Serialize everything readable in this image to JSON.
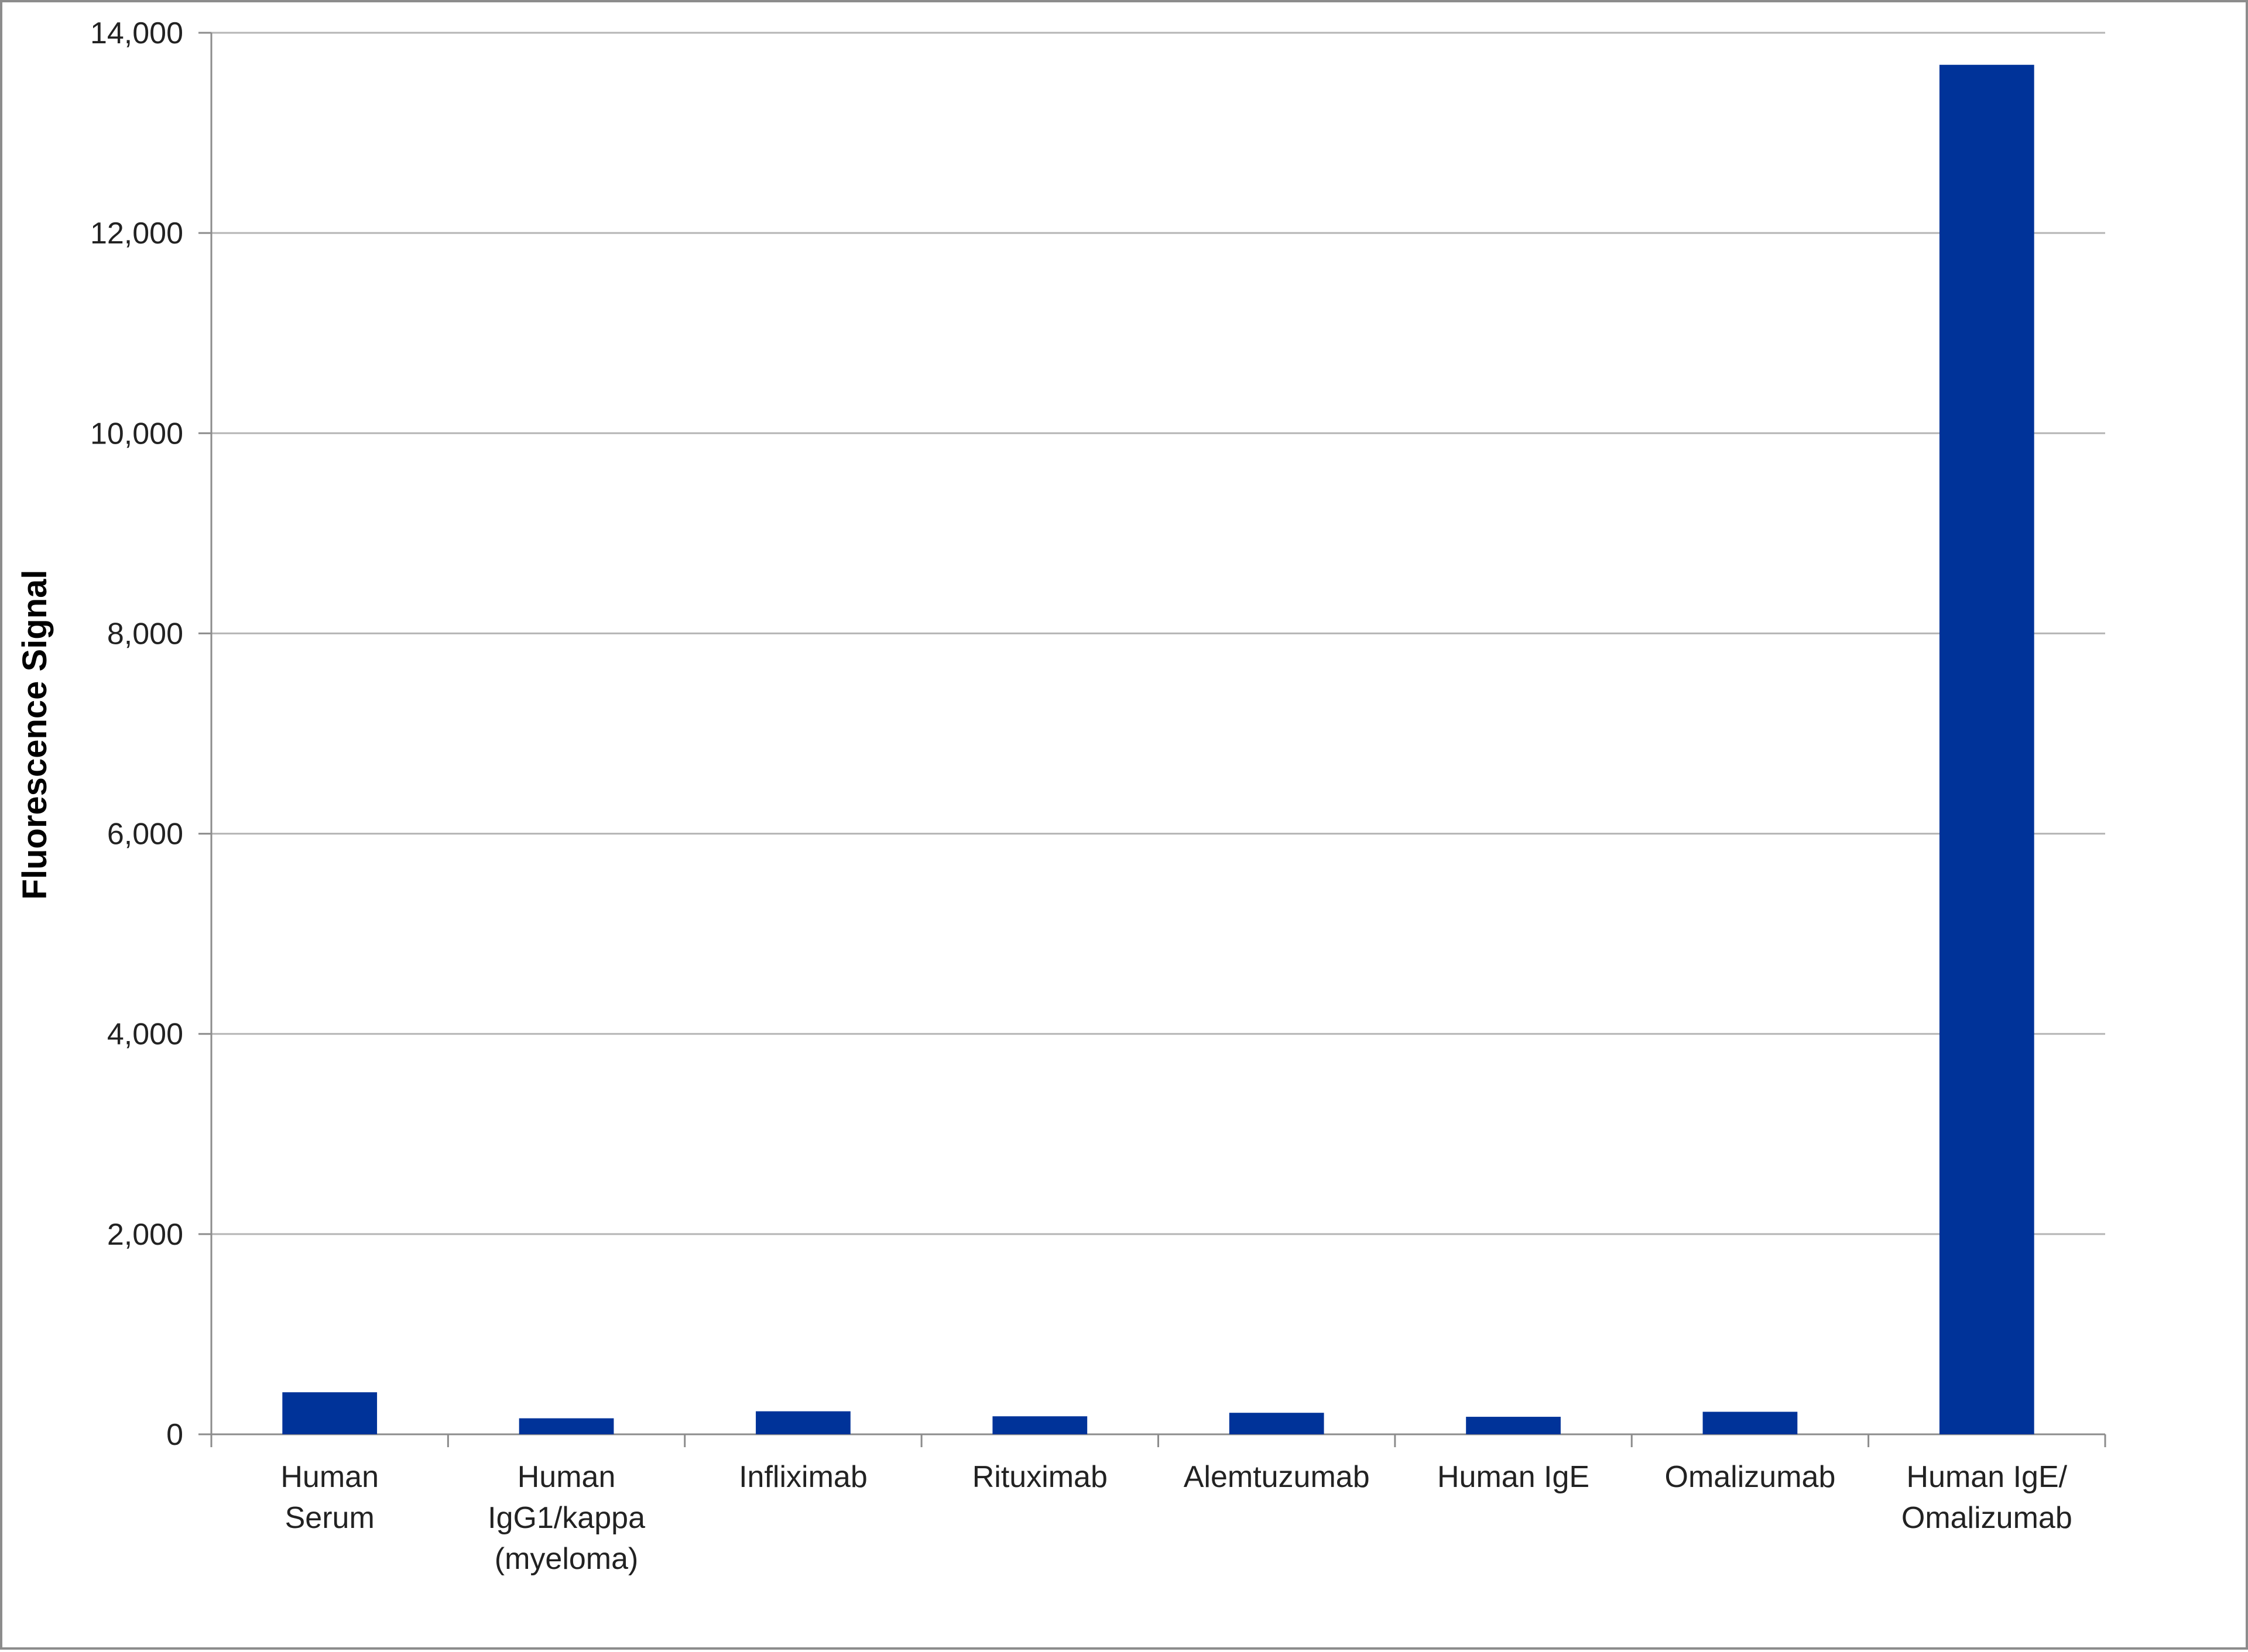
{
  "chart_data": {
    "type": "bar",
    "title": "",
    "xlabel": "",
    "ylabel": "Fluorescence Signal",
    "ylim": [
      0,
      14000
    ],
    "yticks": [
      0,
      2000,
      4000,
      6000,
      8000,
      10000,
      12000,
      14000
    ],
    "ytick_labels": [
      "0",
      "2,000",
      "4,000",
      "6,000",
      "8,000",
      "10,000",
      "12,000",
      "14,000"
    ],
    "grid": "horizontal",
    "legend": "none",
    "bar_color": "#003399",
    "categories": [
      [
        "Human",
        "Serum"
      ],
      [
        "Human",
        "IgG1/kappa",
        "(myeloma)"
      ],
      [
        "Infliximab"
      ],
      [
        "Rituximab"
      ],
      [
        "Alemtuzumab"
      ],
      [
        "Human IgE"
      ],
      [
        "Omalizumab"
      ],
      [
        "Human IgE/",
        "Omalizumab"
      ]
    ],
    "values": [
      420,
      160,
      230,
      180,
      215,
      175,
      225,
      13680
    ]
  }
}
